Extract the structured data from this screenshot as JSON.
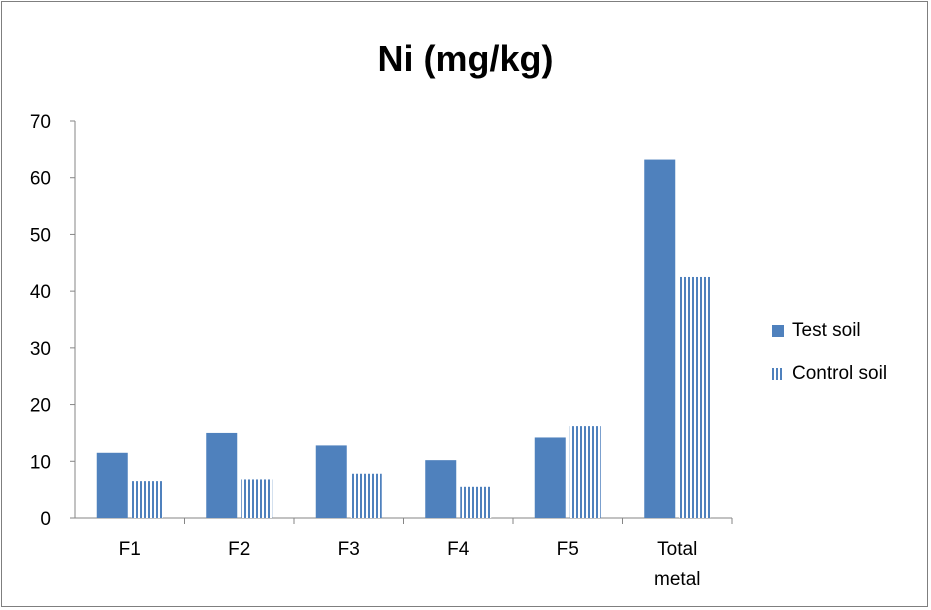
{
  "chart_data": {
    "type": "bar",
    "title": "Ni (mg/kg)",
    "categories": [
      "F1",
      "F2",
      "F3",
      "F4",
      "F5",
      "Total metal"
    ],
    "series": [
      {
        "name": "Test soil",
        "values": [
          11.5,
          15,
          12.8,
          10.2,
          14.2,
          63.2
        ],
        "color": "#4f81bd",
        "pattern": "solid"
      },
      {
        "name": "Control soil",
        "values": [
          6.5,
          6.8,
          7.8,
          5.5,
          16.2,
          42.5
        ],
        "color": "#4f81bd",
        "pattern": "vertical-stripes"
      }
    ],
    "y_ticks": [
      "0",
      "10",
      "20",
      "30",
      "40",
      "50",
      "60",
      "70"
    ],
    "ylim": [
      0,
      70
    ],
    "grid": false,
    "legend_position": "right"
  }
}
